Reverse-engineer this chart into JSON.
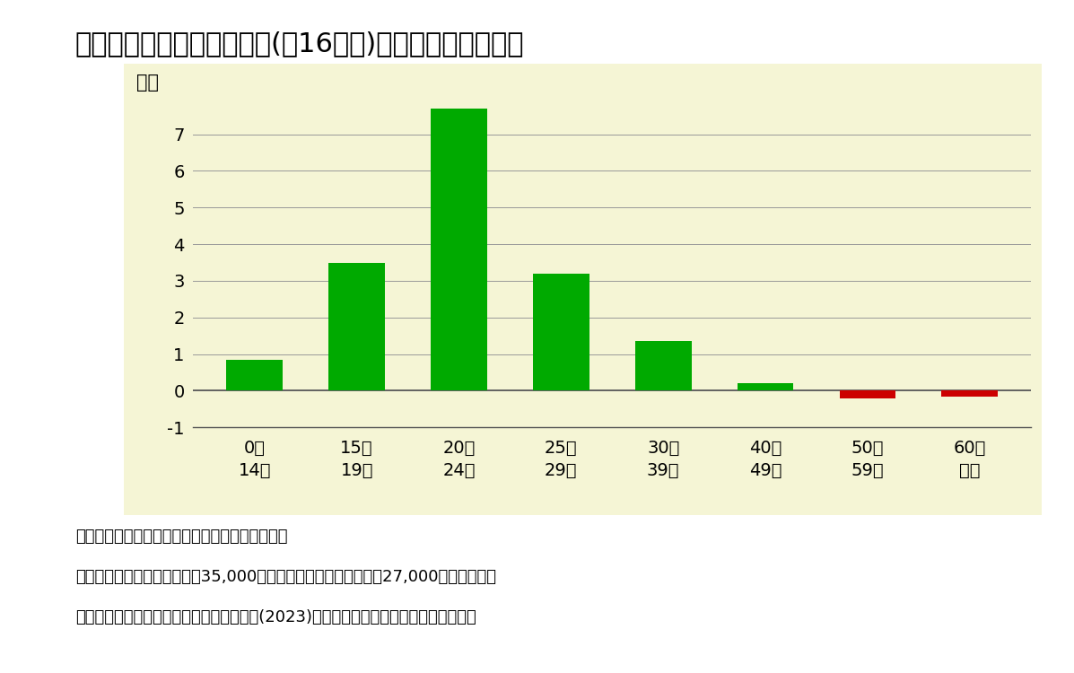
{
  "title": "図表２　外国人入国超過数(絀16万人)の年齢区分別の内訳",
  "categories": [
    "0～\n14歳",
    "15～\n19歳",
    "20～\n24歳",
    "25～\n29歳",
    "30～\n39歳",
    "40～\n49歳",
    "50～\n59歳",
    "60歳\n以上"
  ],
  "values": [
    0.85,
    3.5,
    7.7,
    3.2,
    1.35,
    0.2,
    -0.2,
    -0.15
  ],
  "bar_colors": [
    "#00aa00",
    "#00aa00",
    "#00aa00",
    "#00aa00",
    "#00aa00",
    "#00aa00",
    "#cc0000",
    "#cc0000"
  ],
  "ylabel": "万人",
  "ylim": [
    -1,
    8
  ],
  "yticks": [
    -1,
    0,
    1,
    2,
    3,
    4,
    5,
    6,
    7
  ],
  "chart_bg": "#f5f5d5",
  "outer_bg": "#ffffff",
  "note1": "（注１）　緑は入国超過、赤は出国超過を示す。",
  "note2": "（注２）　１５～１９歳の絉35,000人のうち、１８～１９歳が絉27,000人を占める。",
  "note3": "（資料）　国立社会保障・人口問題研究所(2023)「日本の将来推計人口」より筆者作成",
  "title_fontsize": 22,
  "ylabel_fontsize": 15,
  "tick_fontsize": 14,
  "note_fontsize": 13
}
